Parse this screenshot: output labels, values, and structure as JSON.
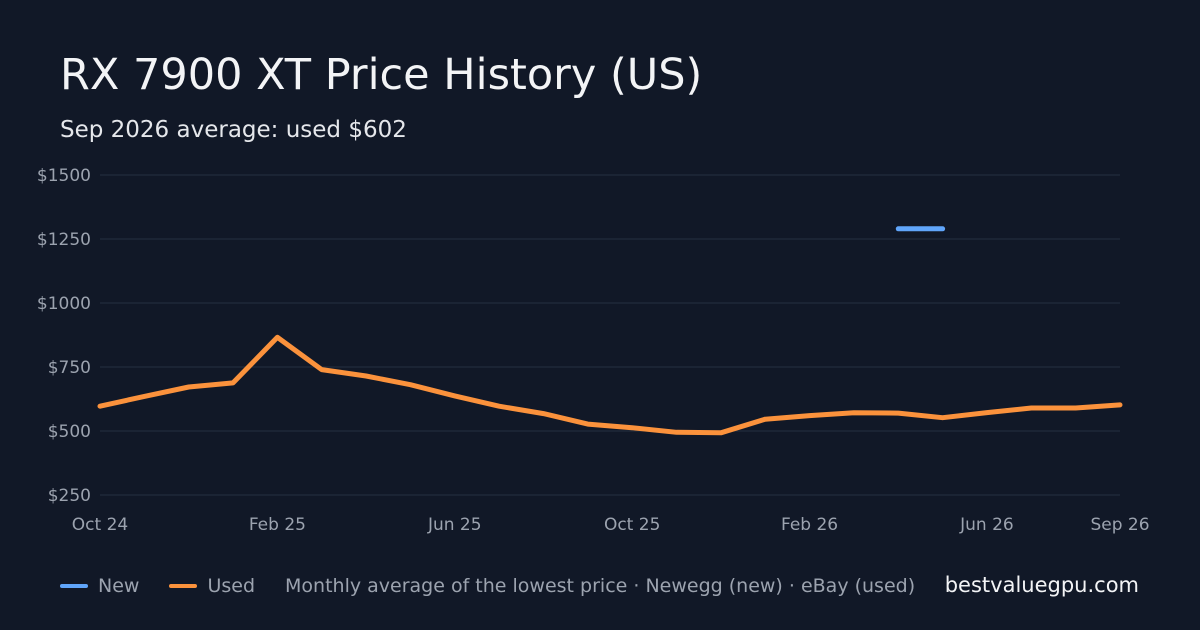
{
  "header": {
    "title": "RX 7900 XT Price History (US)",
    "subtitle": "Sep 2026 average: used $602"
  },
  "legend": {
    "items": [
      {
        "label": "New",
        "color": "#60a5fa"
      },
      {
        "label": "Used",
        "color": "#fb923c"
      }
    ],
    "note": "Monthly average of the lowest price · Newegg (new) · eBay (used)"
  },
  "brand": "bestvaluegpu.com",
  "chart_data": {
    "type": "line",
    "x": [
      "2024-10",
      "2024-11",
      "2024-12",
      "2025-01",
      "2025-02",
      "2025-03",
      "2025-04",
      "2025-05",
      "2025-06",
      "2025-07",
      "2025-08",
      "2025-09",
      "2025-10",
      "2025-11",
      "2025-12",
      "2026-01",
      "2026-02",
      "2026-03",
      "2026-04",
      "2026-05",
      "2026-06",
      "2026-07",
      "2026-08",
      "2026-09"
    ],
    "series": [
      {
        "name": "New",
        "color": "#60a5fa",
        "values": [
          null,
          null,
          null,
          null,
          null,
          null,
          null,
          null,
          null,
          null,
          null,
          null,
          null,
          null,
          null,
          null,
          null,
          null,
          1290,
          1290,
          null,
          null,
          null,
          null
        ]
      },
      {
        "name": "Used",
        "color": "#fb923c",
        "values": [
          597,
          635,
          672,
          688,
          866,
          740,
          715,
          681,
          637,
          597,
          568,
          527,
          513,
          495,
          493,
          546,
          560,
          571,
          570,
          552,
          572,
          590,
          590,
          602
        ]
      }
    ],
    "x_ticks": [
      {
        "x": "2024-10",
        "label": "Oct 24"
      },
      {
        "x": "2025-02",
        "label": "Feb 25"
      },
      {
        "x": "2025-06",
        "label": "Jun 25"
      },
      {
        "x": "2025-10",
        "label": "Oct 25"
      },
      {
        "x": "2026-02",
        "label": "Feb 26"
      },
      {
        "x": "2026-06",
        "label": "Jun 26"
      },
      {
        "x": "2026-09",
        "label": "Sep 26"
      }
    ],
    "y_ticks": [
      {
        "value": 250,
        "label": "$250"
      },
      {
        "value": 500,
        "label": "$500"
      },
      {
        "value": 750,
        "label": "$750"
      },
      {
        "value": 1000,
        "label": "$1000"
      },
      {
        "value": 1250,
        "label": "$1250"
      },
      {
        "value": 1500,
        "label": "$1500"
      }
    ],
    "ylim": [
      250,
      1500
    ],
    "grid": true,
    "legend_position": "bottom-left"
  }
}
